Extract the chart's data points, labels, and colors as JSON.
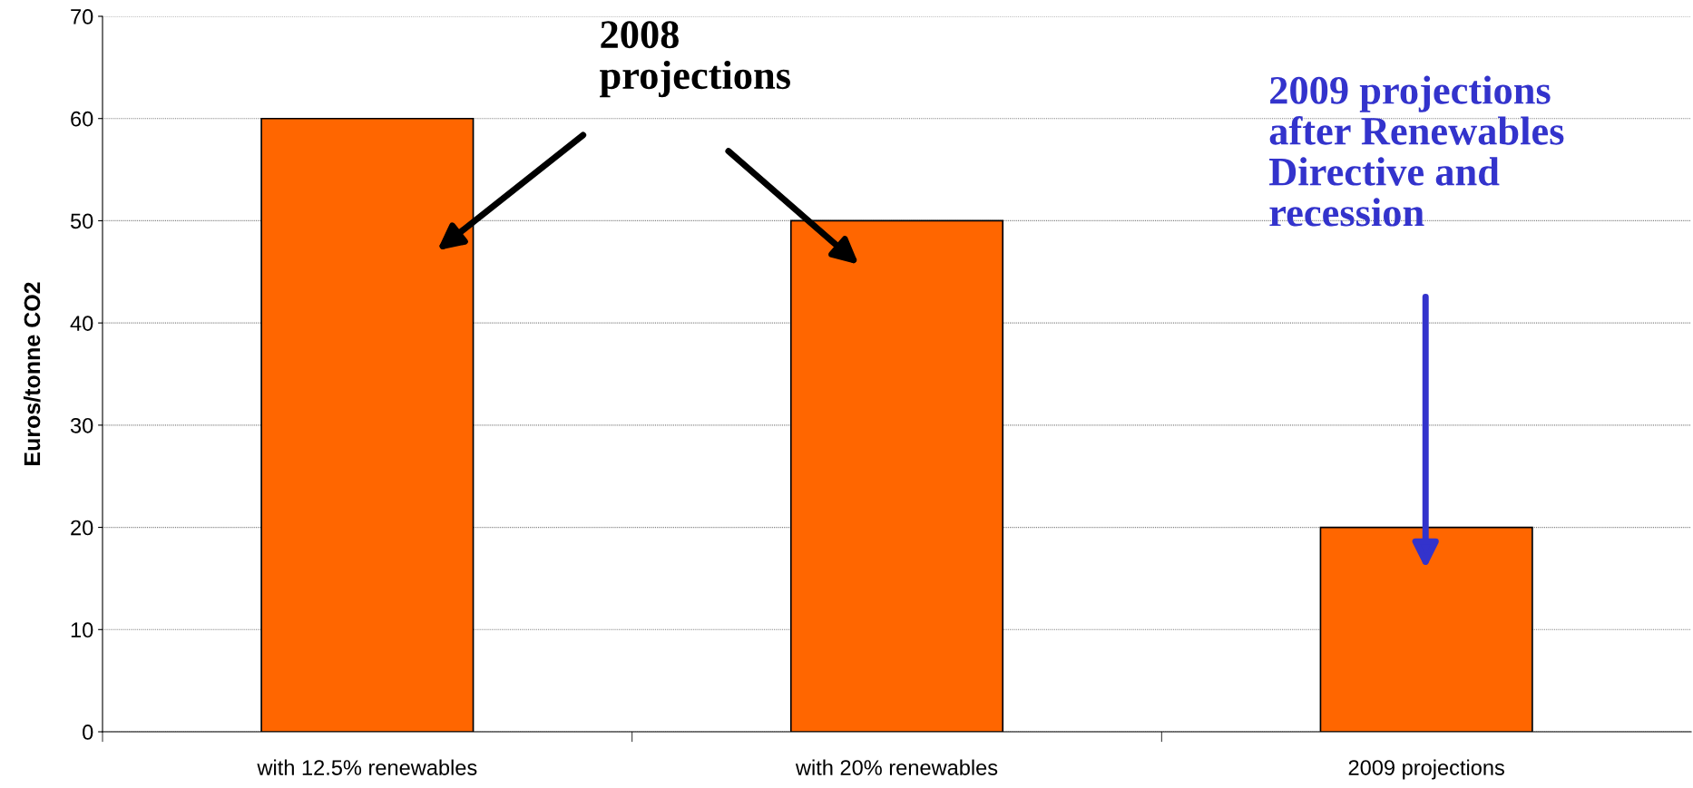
{
  "chart_data": {
    "type": "bar",
    "ylabel": "Euros/tonne CO2",
    "categories": [
      "with 12.5% renewables",
      "with 20% renewables",
      "2009 projections"
    ],
    "values": [
      60,
      50,
      20
    ],
    "color": "#ff6600",
    "ylim": [
      0,
      70
    ],
    "yticks": [
      0,
      10,
      20,
      30,
      40,
      50,
      60,
      70
    ],
    "grid": "y",
    "annotations": [
      "2008\nprojections",
      "2009 projections\nafter Renewables\nDirective and\nrecession"
    ]
  }
}
